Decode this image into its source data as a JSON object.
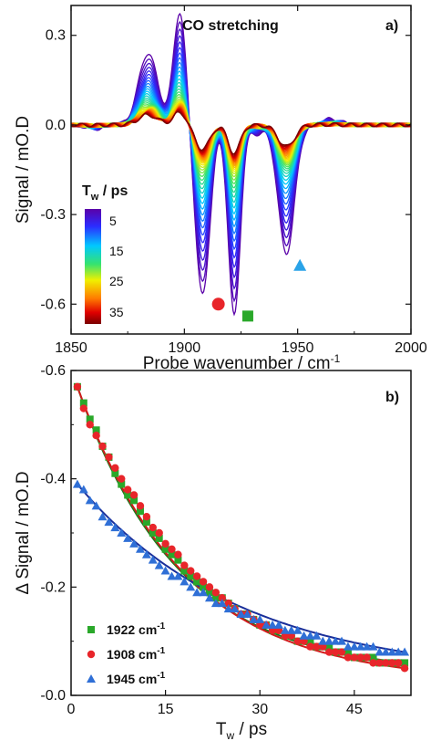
{
  "figure": {
    "panel_a_label": "a)",
    "panel_b_label": "b)",
    "annotation": "CO stretching",
    "colorbar_title": "T",
    "colorbar_title_sub": "w",
    "colorbar_title_unit": " / ps",
    "colorbar_ticks": [
      "5",
      "15",
      "25",
      "35"
    ],
    "xlabel_a": "Probe wavenumber / cm",
    "xlabel_a_sup": "-1",
    "ylabel_a": "Signal / mO.D",
    "xlabel_b": "T",
    "xlabel_b_sub": "w",
    "xlabel_b_unit": " / ps",
    "ylabel_b": "Δ Signal / mO.D",
    "legend": [
      {
        "text": "1922 cm",
        "sup": "-1",
        "color": "#2aa82a",
        "marker": "square"
      },
      {
        "text": "1908 cm",
        "sup": "-1",
        "color": "#e8252a",
        "marker": "circle"
      },
      {
        "text": "1945 cm",
        "sup": "-1",
        "color": "#2f6fd6",
        "marker": "triangle"
      }
    ]
  },
  "chart_data": [
    {
      "type": "line",
      "panel": "a",
      "xlim": [
        1850,
        2000
      ],
      "ylim": [
        -0.7,
        0.4
      ],
      "xticks": [
        "1850",
        "1900",
        "1950",
        "2000"
      ],
      "yticks": [
        "0.3",
        "0.0",
        "-0.3",
        "-0.6"
      ],
      "ytick_values": [
        0.3,
        0.0,
        -0.3,
        -0.6
      ],
      "xtick_values": [
        1850,
        1900,
        1950,
        2000
      ],
      "series_count": 35,
      "tw_range": [
        1,
        35
      ],
      "bands": [
        {
          "center": 1908,
          "amp_initial": -0.57,
          "amp_final": -0.05,
          "sign": "negative"
        },
        {
          "center": 1922,
          "amp_initial": -0.64,
          "amp_final": -0.06,
          "sign": "negative"
        },
        {
          "center": 1945,
          "amp_initial": -0.43,
          "amp_final": -0.05,
          "sign": "negative"
        },
        {
          "center": 1884,
          "amp_initial": 0.24,
          "amp_final": 0.02,
          "sign": "positive"
        },
        {
          "center": 1898,
          "amp_initial": 0.38,
          "amp_final": 0.02,
          "sign": "positive"
        }
      ],
      "markers": [
        {
          "shape": "circle",
          "x": 1915,
          "y": -0.6,
          "color": "#e8252a"
        },
        {
          "shape": "square",
          "x": 1928,
          "y": -0.64,
          "color": "#2aa82a"
        },
        {
          "shape": "triangle",
          "x": 1951,
          "y": -0.47,
          "color": "#2aa3e8"
        }
      ]
    },
    {
      "type": "scatter",
      "panel": "b",
      "xlim": [
        0,
        54
      ],
      "ylim": [
        0.0,
        -0.6
      ],
      "xticks": [
        "0",
        "15",
        "30",
        "45"
      ],
      "xtick_values": [
        0,
        15,
        30,
        45
      ],
      "yticks": [
        "-0.6",
        "-0.4",
        "-0.2",
        "-0.0"
      ],
      "ytick_values": [
        -0.6,
        -0.4,
        -0.2,
        0.0
      ],
      "series": [
        {
          "name": "1922 cm-1",
          "color": "#2aa82a",
          "marker": "square",
          "x": [
            1,
            2,
            3,
            4,
            5,
            6,
            7,
            8,
            9,
            10,
            11,
            12,
            13,
            14,
            15,
            16,
            17,
            18,
            19,
            20,
            21,
            22,
            23,
            24,
            25,
            26,
            27,
            28,
            29,
            30,
            31,
            32,
            33,
            34,
            35,
            36,
            37,
            38,
            39,
            40,
            41,
            42,
            43,
            44,
            45,
            46,
            47,
            48,
            49,
            50,
            51,
            52,
            53
          ],
          "y": [
            -0.57,
            -0.54,
            -0.51,
            -0.49,
            -0.46,
            -0.44,
            -0.41,
            -0.39,
            -0.37,
            -0.36,
            -0.34,
            -0.32,
            -0.3,
            -0.29,
            -0.27,
            -0.26,
            -0.25,
            -0.23,
            -0.22,
            -0.21,
            -0.2,
            -0.19,
            -0.18,
            -0.18,
            -0.17,
            -0.16,
            -0.15,
            -0.15,
            -0.14,
            -0.13,
            -0.13,
            -0.12,
            -0.12,
            -0.11,
            -0.11,
            -0.1,
            -0.1,
            -0.1,
            -0.09,
            -0.09,
            -0.09,
            -0.08,
            -0.08,
            -0.08,
            -0.07,
            -0.07,
            -0.07,
            -0.07,
            -0.06,
            -0.06,
            -0.06,
            -0.06,
            -0.06
          ],
          "fit": {
            "a": 0.6,
            "tau": 16.0,
            "c": 0.0
          }
        },
        {
          "name": "1908 cm-1",
          "color": "#e8252a",
          "marker": "circle",
          "x": [
            1,
            2,
            3,
            4,
            5,
            6,
            7,
            8,
            9,
            10,
            11,
            12,
            13,
            14,
            15,
            16,
            17,
            18,
            19,
            20,
            21,
            22,
            23,
            24,
            25,
            26,
            27,
            28,
            29,
            30,
            31,
            32,
            33,
            34,
            35,
            36,
            37,
            38,
            39,
            40,
            41,
            42,
            43,
            44,
            45,
            46,
            47,
            48,
            49,
            50,
            51,
            52,
            53
          ],
          "y": [
            -0.57,
            -0.53,
            -0.5,
            -0.48,
            -0.46,
            -0.44,
            -0.42,
            -0.4,
            -0.38,
            -0.37,
            -0.35,
            -0.33,
            -0.31,
            -0.3,
            -0.28,
            -0.27,
            -0.26,
            -0.24,
            -0.23,
            -0.22,
            -0.21,
            -0.2,
            -0.19,
            -0.18,
            -0.17,
            -0.16,
            -0.15,
            -0.15,
            -0.14,
            -0.13,
            -0.13,
            -0.12,
            -0.12,
            -0.11,
            -0.11,
            -0.1,
            -0.1,
            -0.09,
            -0.09,
            -0.09,
            -0.08,
            -0.08,
            -0.08,
            -0.07,
            -0.07,
            -0.07,
            -0.07,
            -0.06,
            -0.06,
            -0.06,
            -0.06,
            -0.06,
            -0.05
          ],
          "fit": {
            "a": 0.59,
            "tau": 17.0,
            "c": 0.0
          }
        },
        {
          "name": "1945 cm-1",
          "color": "#2f6fd6",
          "marker": "triangle",
          "x": [
            1,
            2,
            3,
            4,
            5,
            6,
            7,
            8,
            9,
            10,
            11,
            12,
            13,
            14,
            15,
            16,
            17,
            18,
            19,
            20,
            21,
            22,
            23,
            24,
            25,
            26,
            27,
            28,
            29,
            30,
            31,
            32,
            33,
            34,
            35,
            36,
            37,
            38,
            39,
            40,
            41,
            42,
            43,
            44,
            45,
            46,
            47,
            48,
            49,
            50,
            51,
            52,
            53
          ],
          "y": [
            -0.39,
            -0.38,
            -0.36,
            -0.35,
            -0.33,
            -0.32,
            -0.31,
            -0.3,
            -0.29,
            -0.28,
            -0.27,
            -0.26,
            -0.25,
            -0.24,
            -0.23,
            -0.22,
            -0.22,
            -0.21,
            -0.2,
            -0.19,
            -0.19,
            -0.18,
            -0.17,
            -0.17,
            -0.16,
            -0.16,
            -0.15,
            -0.15,
            -0.14,
            -0.14,
            -0.13,
            -0.13,
            -0.13,
            -0.12,
            -0.12,
            -0.12,
            -0.11,
            -0.11,
            -0.11,
            -0.1,
            -0.1,
            -0.1,
            -0.1,
            -0.09,
            -0.09,
            -0.09,
            -0.09,
            -0.09,
            -0.08,
            -0.08,
            -0.08,
            -0.08,
            -0.08
          ],
          "fit": {
            "a": 0.41,
            "tau": 26.0,
            "c": 0.0
          }
        }
      ]
    }
  ]
}
